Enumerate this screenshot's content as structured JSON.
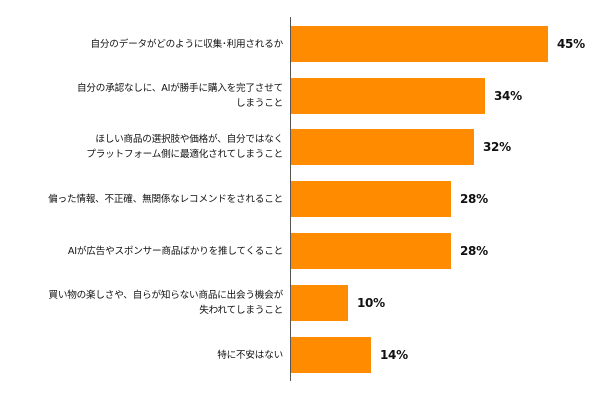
{
  "chart_data": {
    "type": "bar",
    "orientation": "horizontal",
    "title": "",
    "xlabel": "",
    "ylabel": "",
    "xlim": [
      0,
      50
    ],
    "grid": false,
    "legend": null,
    "bar_color": "#FF8C00",
    "axis_color": "#555555",
    "categories": [
      "自分のデータがどのように収集･利用されるか",
      "自分の承認なしに、AIが勝手に購入を完了させて\nしまうこと",
      "ほしい商品の選択肢や価格が、自分ではなく\nプラットフォーム側に最適化されてしまうこと",
      "偏った情報、不正確、無関係なレコメンドをされること",
      "AIが広告やスポンサー商品ばかりを推してくること",
      "買い物の楽しさや、自らが知らない商品に出会う機会が\n失われてしまうこと",
      "特に不安はない"
    ],
    "values": [
      45,
      34,
      32,
      28,
      28,
      10,
      14
    ],
    "value_labels": [
      "45%",
      "34%",
      "32%",
      "28%",
      "28%",
      "10%",
      "14%"
    ],
    "unit": "%"
  }
}
